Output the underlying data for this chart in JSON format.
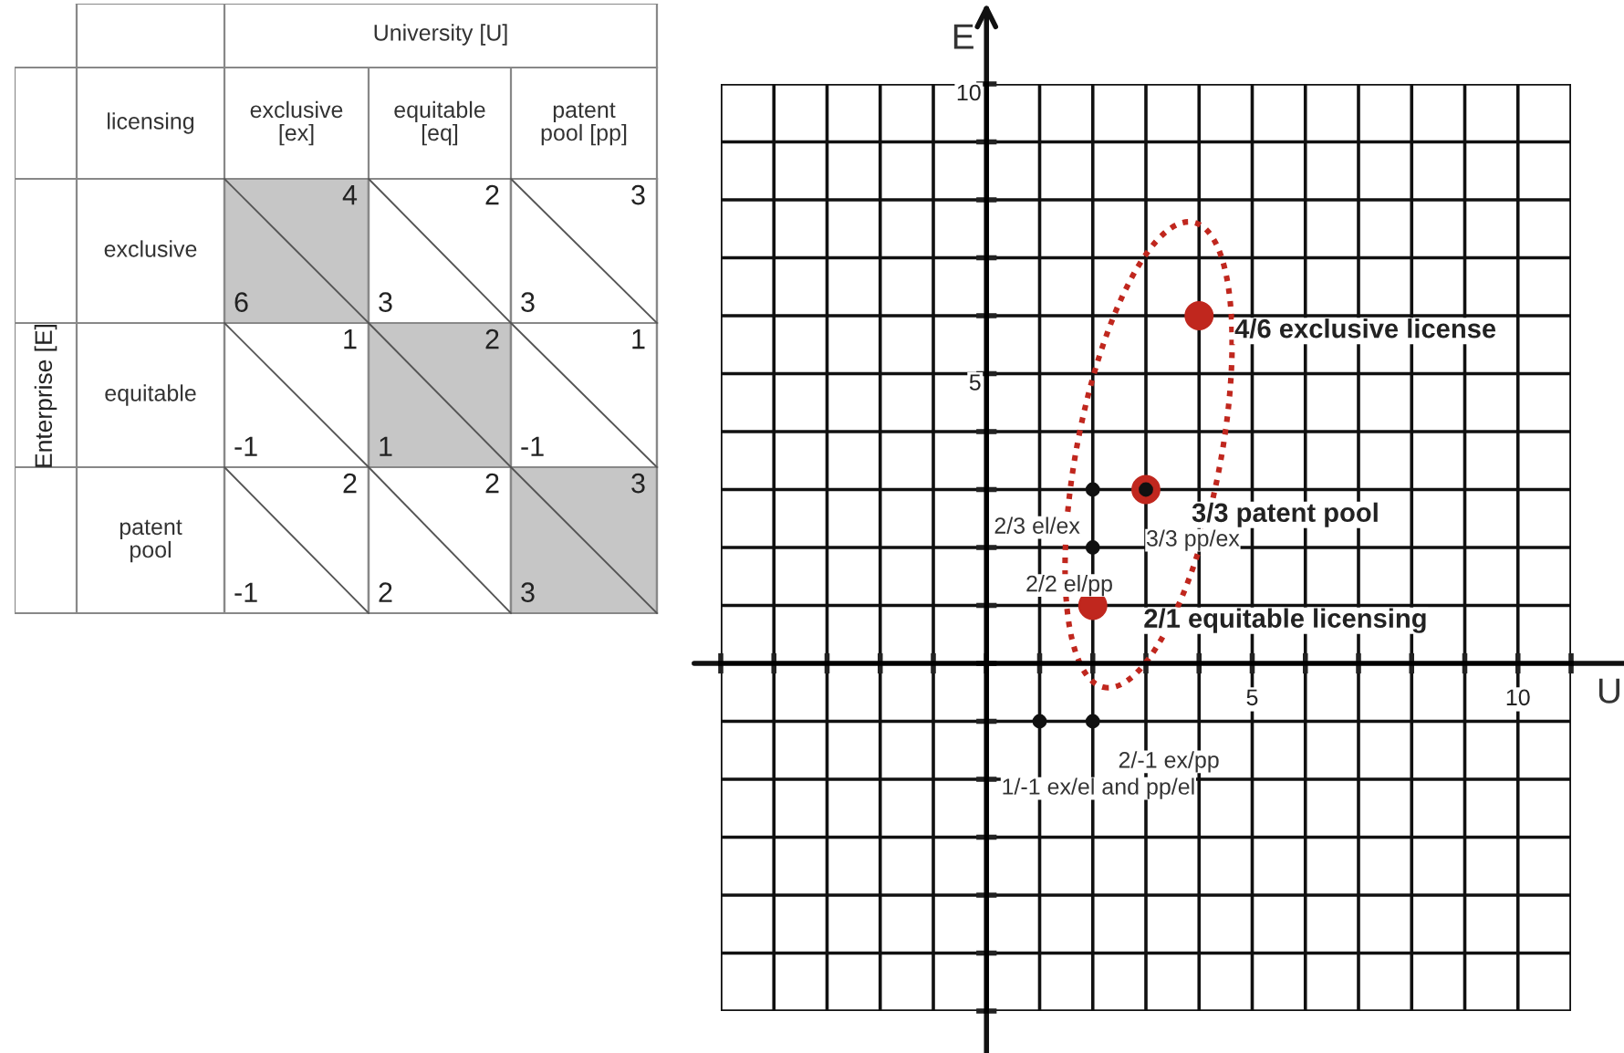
{
  "chart_data": [
    {
      "type": "other",
      "title": "University [U]",
      "ylabel": "Enterprise [E]",
      "annotations": [
        "licensing"
      ],
      "categories": [
        "exclusive\n[ex]",
        "equitable\n[eq]",
        "patent\npool [pp]"
      ],
      "y_categories": [
        "exclusive",
        "equitable",
        "patent\npool"
      ],
      "cell_labels": [
        [
          [
            "4",
            "6"
          ],
          [
            "2",
            "3"
          ],
          [
            "3",
            "3"
          ]
        ],
        [
          [
            "1",
            "-1"
          ],
          [
            "2",
            "1"
          ],
          [
            "1",
            "-1"
          ]
        ],
        [
          [
            "2",
            "-1"
          ],
          [
            "2",
            "2"
          ],
          [
            "3",
            "3"
          ]
        ]
      ],
      "colors": [
        [
          "#c6c6c6",
          "#ffffff",
          "#ffffff"
        ],
        [
          "#ffffff",
          "#c6c6c6",
          "#ffffff"
        ],
        [
          "#ffffff",
          "#ffffff",
          "#c6c6c6"
        ]
      ]
    },
    {
      "type": "scatter",
      "xlabel": "U",
      "ylabel": "E",
      "xlim": [
        -5,
        11
      ],
      "ylim": [
        -6,
        10
      ],
      "xticks": [
        {
          "value": -5,
          "label": null
        },
        {
          "value": -4,
          "label": null
        },
        {
          "value": -3,
          "label": null
        },
        {
          "value": -2,
          "label": null
        },
        {
          "value": -1,
          "label": null
        },
        {
          "value": 0,
          "label": null
        },
        {
          "value": 1,
          "label": null
        },
        {
          "value": 2,
          "label": null
        },
        {
          "value": 3,
          "label": null
        },
        {
          "value": 4,
          "label": null
        },
        5,
        {
          "value": 6,
          "label": null
        },
        {
          "value": 7,
          "label": null
        },
        {
          "value": 8,
          "label": null
        },
        {
          "value": 9,
          "label": null
        },
        10,
        {
          "value": 11,
          "label": null
        }
      ],
      "yticks": [
        {
          "value": -6,
          "label": null
        },
        {
          "value": -5,
          "label": null
        },
        {
          "value": -4,
          "label": null
        },
        {
          "value": -3,
          "label": null
        },
        {
          "value": -2,
          "label": null
        },
        {
          "value": -1,
          "label": null
        },
        {
          "value": 0,
          "label": null
        },
        {
          "value": 1,
          "label": null
        },
        {
          "value": 2,
          "label": null
        },
        {
          "value": 3,
          "label": null
        },
        {
          "value": 4,
          "label": null
        },
        5,
        {
          "value": 6,
          "label": null
        },
        {
          "value": 7,
          "label": null
        },
        {
          "value": 8,
          "label": null
        },
        {
          "value": 9,
          "label": null
        },
        10
      ],
      "grid": true,
      "marker": "circle",
      "series": [
        {
          "color": "#c0271e",
          "x": [
            4,
            3,
            2
          ],
          "values": [
            6,
            3,
            1
          ]
        },
        {
          "color": "#111111",
          "x": [
            2,
            2,
            3,
            2,
            1
          ],
          "values": [
            3,
            2,
            3,
            -1,
            -1
          ]
        }
      ],
      "annotations": [
        {
          "text": "4/6 exclusive license",
          "x": 4,
          "y": 6
        },
        {
          "text": "3/3 patent pool",
          "x": 3,
          "y": 3
        },
        {
          "text": "2/1 equitable licensing",
          "x": 2,
          "y": 1
        },
        {
          "text": "2/3 el/ex",
          "x": 2,
          "y": 3
        },
        {
          "text": "2/2 el/pp",
          "x": 2,
          "y": 2
        },
        {
          "text": "3/3 pp/ex",
          "x": 3,
          "y": 3
        },
        {
          "text": "2/-1 ex/pp",
          "x": 2,
          "y": -1
        },
        "1/-1 ex/el and pp/el"
      ]
    }
  ]
}
